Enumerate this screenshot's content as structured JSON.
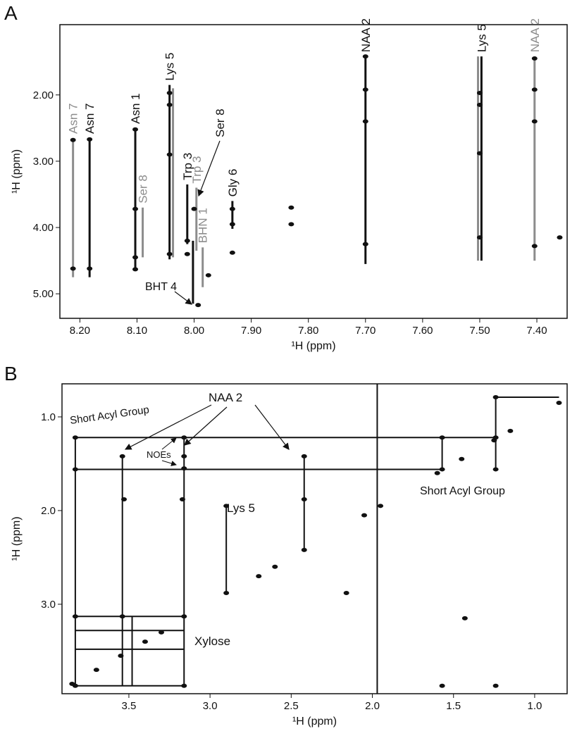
{
  "chart_data": [
    {
      "type": "nmr",
      "panel": "A",
      "xlabel": "¹H (ppm)",
      "ylabel": "¹H (ppm)",
      "xlim": [
        8.235,
        7.347
      ],
      "ylim": [
        0.94,
        5.37
      ],
      "xticks": [
        {
          "value": 8.2,
          "label": "8.20"
        },
        {
          "value": 8.1,
          "label": "8.10"
        },
        {
          "value": 8,
          "label": "8.00"
        },
        {
          "value": 7.9,
          "label": "7.90"
        },
        {
          "value": 7.8,
          "label": "7.80"
        },
        {
          "value": 7.7,
          "label": "7.70"
        },
        {
          "value": 7.6,
          "label": "7.60"
        },
        {
          "value": 7.5,
          "label": "7.50"
        },
        {
          "value": 7.4,
          "label": "7.40"
        }
      ],
      "yticks": [
        {
          "value": 2,
          "label": "2.00"
        },
        {
          "value": 3,
          "label": "3.00"
        },
        {
          "value": 4,
          "label": "4.00"
        },
        {
          "value": 5,
          "label": "5.00"
        }
      ],
      "spin_systems": [
        {
          "name": "Asn 7",
          "color": "#8c8c8c",
          "x": 8.212,
          "y": [
            2.65,
            4.75
          ]
        },
        {
          "name": "Asn 7",
          "color": "#111111",
          "x": 8.183,
          "y": [
            2.65,
            4.75
          ]
        },
        {
          "name": "Asn 1",
          "color": "#111111",
          "x": 8.103,
          "y": [
            2.5,
            4.65
          ]
        },
        {
          "name": "Ser 8",
          "color": "#8c8c8c",
          "x": 8.09,
          "y": [
            3.7,
            4.45
          ]
        },
        {
          "name": "Lys 5",
          "color": "#111111",
          "x": 8.043,
          "y": [
            1.85,
            4.48
          ]
        },
        {
          "color": "#8c8c8c",
          "x": 8.037,
          "y": [
            1.9,
            4.45
          ]
        },
        {
          "name": "Trp 3",
          "color": "#111111",
          "x": 8.012,
          "y": [
            3.35,
            4.25
          ]
        },
        {
          "name": "Trp 3",
          "color": "#8c8c8c",
          "x": 7.996,
          "y": [
            3.4,
            4.35
          ]
        },
        {
          "color": "#111111",
          "x": 8.002,
          "y": [
            4.2,
            5.15
          ]
        },
        {
          "name": "BHN 1",
          "color": "#8c8c8c",
          "x": 7.985,
          "y": [
            4.3,
            4.9
          ]
        },
        {
          "name": "Gly 6",
          "color": "#111111",
          "x": 7.933,
          "y": [
            3.6,
            4.02
          ]
        },
        {
          "name": "NAA 2",
          "color": "#111111",
          "x": 7.7,
          "y": [
            1.42,
            4.55
          ]
        },
        {
          "name": "Lys 5",
          "color": "#111111",
          "x": 7.497,
          "y": [
            1.42,
            4.5
          ]
        },
        {
          "color": "#8c8c8c",
          "x": 7.503,
          "y": [
            1.42,
            4.5
          ]
        },
        {
          "name": "NAA 2",
          "color": "#8c8c8c",
          "x": 7.404,
          "y": [
            1.42,
            4.5
          ]
        }
      ],
      "annotations": [
        "Ser 8",
        "BHT 4"
      ],
      "peaks": {
        "x": [
          8.212,
          8.212,
          8.183,
          8.183,
          8.103,
          8.103,
          8.103,
          8.103,
          8.043,
          8.043,
          8.043,
          8.043,
          8.012,
          8.012,
          8.0,
          7.933,
          7.933,
          7.933,
          7.975,
          7.83,
          7.83,
          7.7,
          7.7,
          7.7,
          7.7,
          7.5,
          7.5,
          7.5,
          7.5,
          7.404,
          7.404,
          7.404,
          7.404,
          7.36,
          7.993
        ],
        "y": [
          2.68,
          4.62,
          2.67,
          4.62,
          2.52,
          3.72,
          4.45,
          4.63,
          1.97,
          2.15,
          2.9,
          4.4,
          4.2,
          4.4,
          3.72,
          3.72,
          3.95,
          4.38,
          4.72,
          3.7,
          3.95,
          1.42,
          1.92,
          2.4,
          4.25,
          1.97,
          2.15,
          2.88,
          4.15,
          1.45,
          1.92,
          2.4,
          4.28,
          4.15,
          5.17
        ]
      }
    },
    {
      "type": "nmr",
      "panel": "B",
      "xlabel": "¹H (ppm)",
      "ylabel": "¹H (ppm)",
      "xlim": [
        3.912,
        0.8
      ],
      "ylim": [
        0.647,
        3.955
      ],
      "xticks": [
        3.5,
        {
          "value": 3,
          "label": "3.0"
        },
        2.5,
        {
          "value": 2,
          "label": "2.0"
        },
        1.5,
        {
          "value": 1,
          "label": "1.0"
        }
      ],
      "yticks": [
        {
          "value": 1,
          "label": "1.0"
        },
        {
          "value": 2,
          "label": "2.0"
        },
        {
          "value": 3,
          "label": "3.0"
        }
      ],
      "segments": [
        {
          "x": [
            3.83,
            1.24
          ],
          "y": [
            1.22,
            1.22
          ]
        },
        {
          "x": [
            3.83,
            1.57
          ],
          "y": [
            1.56,
            1.56
          ]
        },
        {
          "x": [
            1.57,
            1.57
          ],
          "y": [
            1.22,
            1.56
          ]
        },
        {
          "x": [
            1.24,
            1.24
          ],
          "y": [
            0.79,
            1.56
          ]
        },
        {
          "x": [
            1.24,
            0.85
          ],
          "y": [
            0.79,
            0.79
          ]
        },
        {
          "x": [
            3.83,
            3.83
          ],
          "y": [
            1.22,
            3.87
          ]
        },
        {
          "x": [
            3.54,
            3.54
          ],
          "y": [
            1.42,
            3.87
          ]
        },
        {
          "x": [
            3.16,
            3.16
          ],
          "y": [
            1.22,
            3.87
          ]
        },
        {
          "x": [
            2.42,
            2.42
          ],
          "y": [
            1.42,
            2.42
          ]
        },
        {
          "x": [
            2.9,
            2.9
          ],
          "y": [
            1.95,
            2.88
          ]
        },
        {
          "x": [
            3.83,
            3.16
          ],
          "y": [
            3.13,
            3.13
          ]
        },
        {
          "x": [
            3.83,
            3.16
          ],
          "y": [
            3.28,
            3.28
          ]
        },
        {
          "x": [
            3.83,
            3.16
          ],
          "y": [
            3.48,
            3.48
          ]
        },
        {
          "x": [
            3.83,
            3.16
          ],
          "y": [
            3.87,
            3.87
          ]
        },
        {
          "x": [
            3.48,
            3.48
          ],
          "y": [
            3.13,
            3.87
          ]
        },
        {
          "x": [
            1.97,
            1.97
          ],
          "y": [
            0.647,
            3.955
          ]
        }
      ],
      "annotations": [
        "Short Acyl Group",
        "NAA 2",
        "NOEs",
        "Lys 5",
        "Xylose",
        "Short Acyl Group"
      ],
      "peaks": {
        "x": [
          3.85,
          3.7,
          3.55,
          3.4,
          3.3,
          2.7,
          2.6,
          2.42,
          2.05,
          1.95,
          1.6,
          1.45,
          1.25,
          1.15,
          0.85,
          3.83,
          3.83,
          1.57,
          1.57,
          1.24,
          1.24,
          1.24,
          3.54,
          3.16,
          3.16,
          3.16,
          2.42,
          2.42,
          2.9,
          2.9,
          3.53,
          3.17,
          1.57,
          1.24,
          1.43,
          2.16,
          3.83,
          3.54,
          3.16,
          3.83,
          3.16
        ],
        "y": [
          3.85,
          3.7,
          3.55,
          3.4,
          3.3,
          2.7,
          2.6,
          2.42,
          2.05,
          1.95,
          1.6,
          1.45,
          1.25,
          1.15,
          0.85,
          1.22,
          1.56,
          1.22,
          1.56,
          1.56,
          0.79,
          1.22,
          1.42,
          1.22,
          1.42,
          1.55,
          1.42,
          1.88,
          1.95,
          2.88,
          1.88,
          1.88,
          3.87,
          3.87,
          3.15,
          2.88,
          3.13,
          3.13,
          3.13,
          3.87,
          3.87
        ]
      }
    }
  ]
}
